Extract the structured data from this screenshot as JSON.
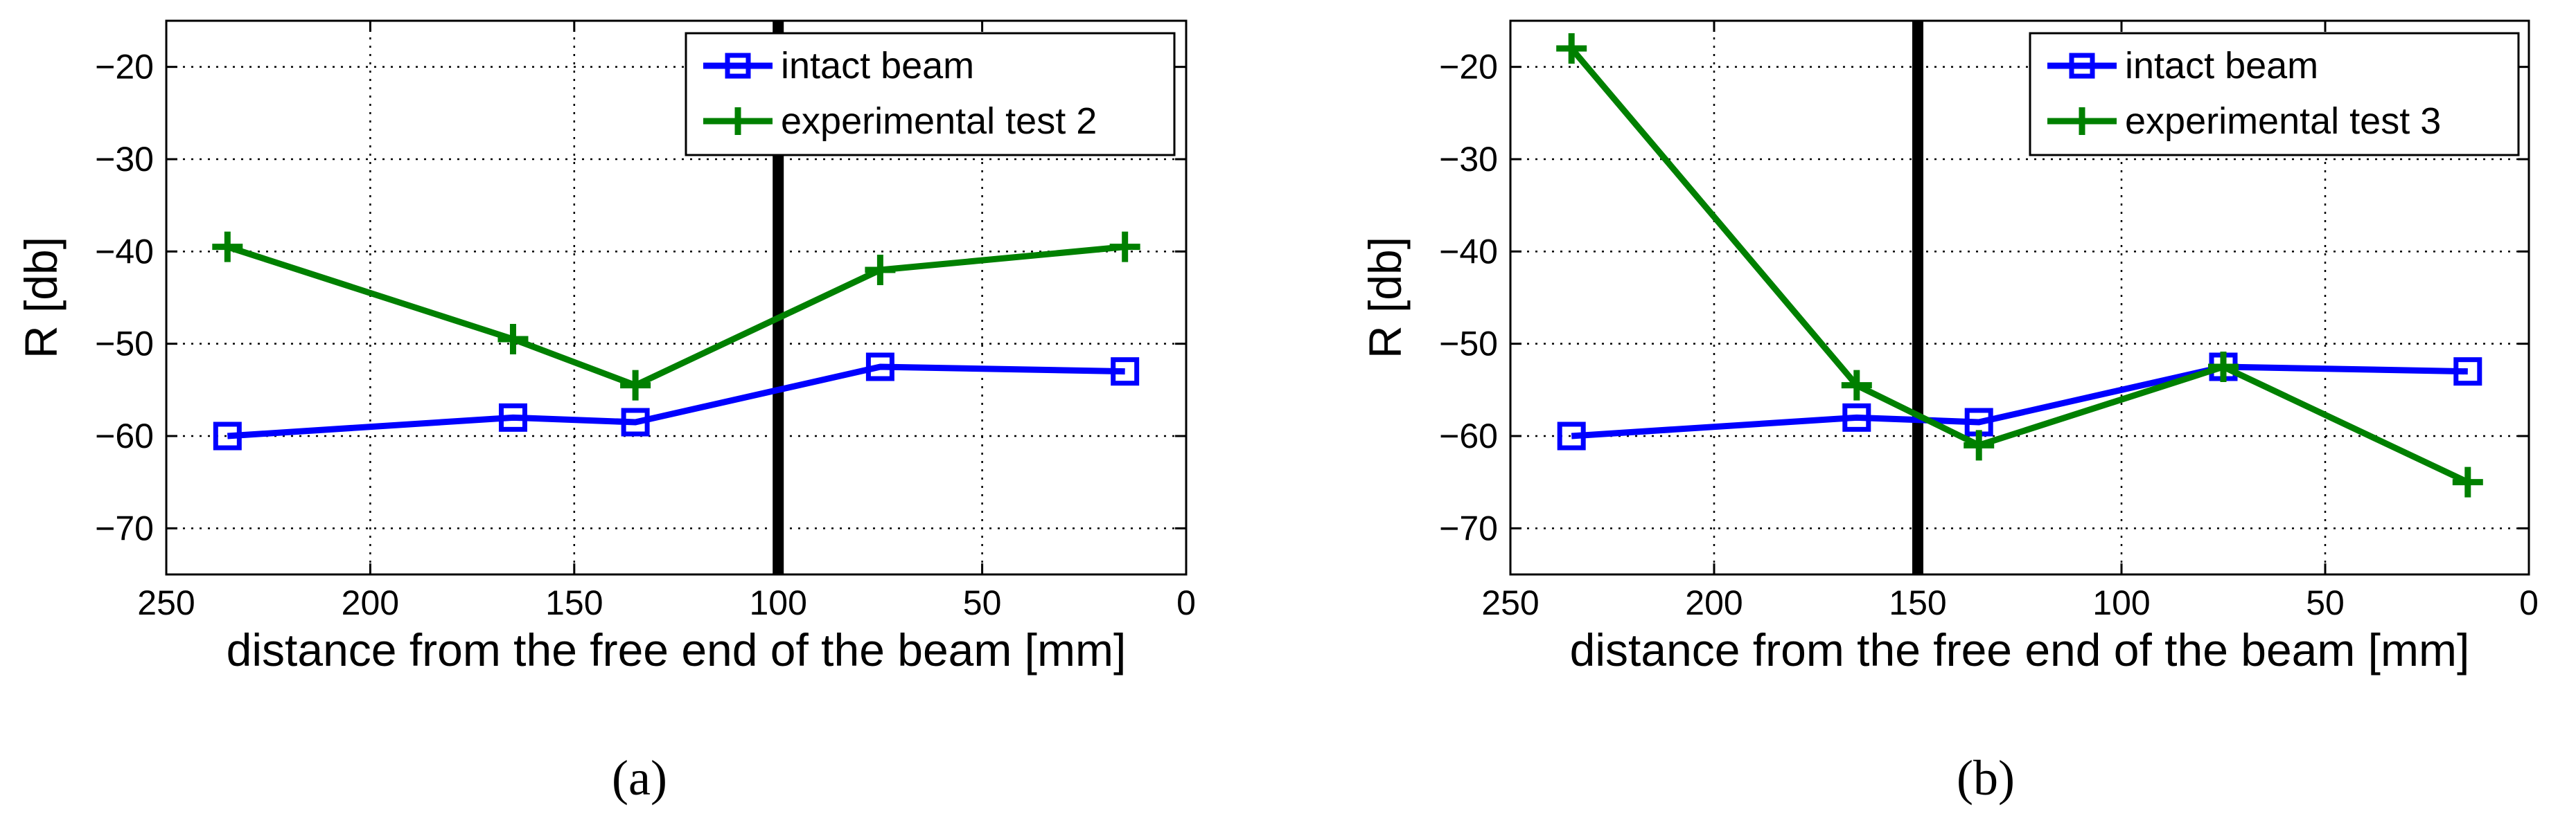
{
  "chart_data": [
    {
      "type": "line",
      "caption": "(a)",
      "xlabel": "distance from the free end of the beam [mm]",
      "ylabel": "R [db]",
      "xlim": [
        250,
        0
      ],
      "ylim": [
        -75,
        -15
      ],
      "x_reversed": true,
      "x_ticks": [
        250,
        200,
        150,
        100,
        50,
        0
      ],
      "y_ticks": [
        -20,
        -30,
        -40,
        -50,
        -60,
        -70
      ],
      "grid": true,
      "legend_position": "top-right",
      "vline": {
        "x": 100,
        "y_range": [
          -75,
          -15
        ],
        "color": "#000000"
      },
      "series": [
        {
          "name": "intact beam",
          "color": "#0000ff",
          "marker": "square",
          "x": [
            235,
            165,
            135,
            75,
            15
          ],
          "y": [
            -60,
            -58,
            -58.5,
            -52.5,
            -53
          ]
        },
        {
          "name": "experimental test 2",
          "color": "#008000",
          "marker": "plus",
          "x": [
            235,
            165,
            135,
            75,
            15
          ],
          "y": [
            -39.5,
            -49.5,
            -54.5,
            -42,
            -39.5
          ]
        }
      ]
    },
    {
      "type": "line",
      "caption": "(b)",
      "xlabel": "distance from the free end of the beam [mm]",
      "ylabel": "R [db]",
      "xlim": [
        250,
        0
      ],
      "ylim": [
        -75,
        -15
      ],
      "x_reversed": true,
      "x_ticks": [
        250,
        200,
        150,
        100,
        50,
        0
      ],
      "y_ticks": [
        -20,
        -30,
        -40,
        -50,
        -60,
        -70
      ],
      "grid": true,
      "legend_position": "top-right",
      "vline": {
        "x": 150,
        "y_range": [
          -75,
          -15
        ],
        "color": "#000000"
      },
      "series": [
        {
          "name": "intact beam",
          "color": "#0000ff",
          "marker": "square",
          "x": [
            235,
            165,
            135,
            75,
            15
          ],
          "y": [
            -60,
            -58,
            -58.5,
            -52.5,
            -53
          ]
        },
        {
          "name": "experimental test 3",
          "color": "#008000",
          "marker": "plus",
          "x": [
            235,
            165,
            135,
            75,
            15
          ],
          "y": [
            -18,
            -54.5,
            -61,
            -52.5,
            -65
          ]
        }
      ]
    }
  ]
}
